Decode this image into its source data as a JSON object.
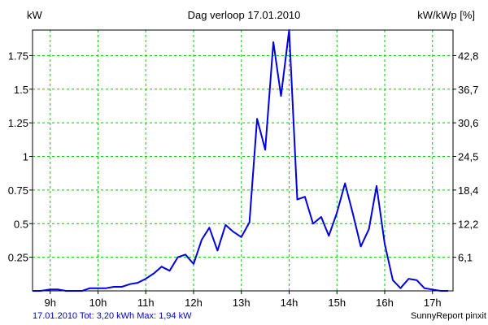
{
  "colors": {
    "line": "#0000dd",
    "grid": "#00cc00",
    "axis": "#000000",
    "footer_left": "#0000cc"
  },
  "chart_data": {
    "type": "line",
    "title": "Dag  verloop 17.01.2010",
    "ylabel_left": "kW",
    "ylabel_right": "kW/kWp [%]",
    "xlim": [
      8.63,
      17.43
    ],
    "ylim": [
      0,
      1.94
    ],
    "grid": true,
    "x_ticks": [
      9,
      10,
      11,
      12,
      13,
      14,
      15,
      16,
      17
    ],
    "x_tick_labels": [
      "9h",
      "10h",
      "11h",
      "12h",
      "13h",
      "14h",
      "15h",
      "16h",
      "17h"
    ],
    "y_left_ticks": [
      0.25,
      0.5,
      0.75,
      1,
      1.25,
      1.5,
      1.75
    ],
    "y_left_tick_labels": [
      "0.25",
      "0.5",
      "0.75",
      "1",
      "1.25",
      "1.5",
      "1.75"
    ],
    "y_right_ticks": [
      0.25,
      0.5,
      0.75,
      1,
      1.25,
      1.5,
      1.75
    ],
    "y_right_tick_labels": [
      "6,1",
      "12,2",
      "18,4",
      "24,5",
      "30,6",
      "36,7",
      "42,8"
    ],
    "series": [
      {
        "x": [
          8.63,
          8.8,
          9.0,
          9.17,
          9.33,
          9.5,
          9.67,
          9.83,
          10.0,
          10.17,
          10.33,
          10.5,
          10.67,
          10.83,
          11.0,
          11.17,
          11.33,
          11.5,
          11.67,
          11.83,
          12.0,
          12.17,
          12.33,
          12.5,
          12.67,
          12.83,
          13.0,
          13.17,
          13.33,
          13.5,
          13.67,
          13.83,
          14.0,
          14.17,
          14.33,
          14.5,
          14.67,
          14.83,
          15.0,
          15.17,
          15.33,
          15.5,
          15.67,
          15.83,
          16.0,
          16.17,
          16.33,
          16.5,
          16.67,
          16.83,
          17.0,
          17.17,
          17.33
        ],
        "y": [
          0.0,
          0.0,
          0.01,
          0.01,
          0.0,
          0.0,
          0.0,
          0.02,
          0.02,
          0.02,
          0.03,
          0.03,
          0.05,
          0.06,
          0.09,
          0.13,
          0.18,
          0.15,
          0.25,
          0.27,
          0.2,
          0.38,
          0.47,
          0.3,
          0.49,
          0.44,
          0.4,
          0.51,
          1.28,
          1.05,
          1.85,
          1.45,
          1.94,
          0.68,
          0.7,
          0.5,
          0.55,
          0.41,
          0.58,
          0.8,
          0.58,
          0.33,
          0.46,
          0.78,
          0.35,
          0.08,
          0.02,
          0.09,
          0.08,
          0.02,
          0.01,
          0.0,
          0.0
        ]
      }
    ]
  },
  "footer": {
    "left": "17.01.2010 Tot: 3,20 kWh Max: 1,94 kW",
    "right": "SunnyReport pinxit"
  }
}
